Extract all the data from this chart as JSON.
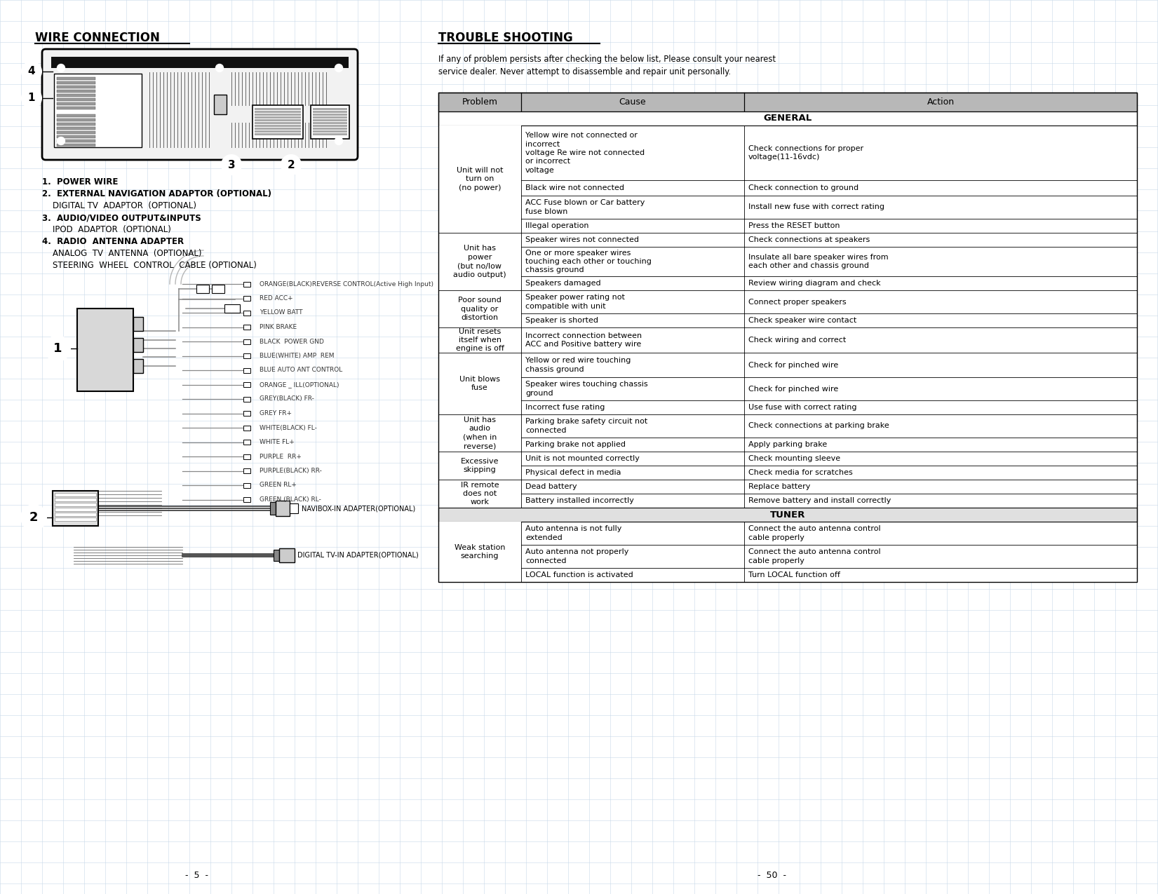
{
  "page_bg": "#ffffff",
  "grid_color": "#c8d8e8",
  "left_title": "WIRE CONNECTION",
  "right_title": "TROUBLE SHOOTING",
  "trouble_intro": "If any of problem persists after checking the below list, Please consult your nearest\nservice dealer. Never attempt to disassemble and repair unit personally.",
  "table_header": [
    "Problem",
    "Cause",
    "Action"
  ],
  "table_header_bg": "#b8b8b8",
  "general_bg": "#e8e8e8",
  "tuner_bg": "#e0e0e0",
  "wire_labels": [
    "ORANGE(BLACK)REVERSE CONTROL(Active High Input)",
    "RED ACC+",
    "YELLOW BATT",
    "PINK BRAKE",
    "BLACK  POWER GND",
    "BLUE(WHITE) AMP  REM",
    "BLUE AUTO ANT CONTROL",
    "ORANGE _ ILL(OPTIONAL)",
    "GREY(BLACK) FR-",
    "GREY FR+",
    "WHITE(BLACK) FL-",
    "WHITE FL+",
    "PURPLE  RR+",
    "PURPLE(BLACK) RR-",
    "GREEN RL+",
    "GREEN (BLACK) RL-"
  ],
  "table_rows": [
    {
      "problem": "Unit will not\nturn on\n(no power)",
      "cause": "Yellow wire not connected or\nincorrect\nvoltage Re wire not connected\nor incorrect\nvoltage",
      "action": "Check connections for proper\nvoltage(11-16vdc)",
      "group_size": 4
    },
    {
      "problem": "",
      "cause": "Black wire not connected",
      "action": "Check connection to ground",
      "group_size": 0
    },
    {
      "problem": "",
      "cause": "ACC Fuse blown or Car battery\nfuse blown",
      "action": "Install new fuse with correct rating",
      "group_size": 0
    },
    {
      "problem": "",
      "cause": "Illegal operation",
      "action": "Press the RESET button",
      "group_size": 0
    },
    {
      "problem": "Unit has\npower\n(but no/low\naudio output)",
      "cause": "Speaker wires not connected",
      "action": "Check connections at speakers",
      "group_size": 3
    },
    {
      "problem": "",
      "cause": "One or more speaker wires\ntouching each other or touching\nchassis ground",
      "action": "Insulate all bare speaker wires from\neach other and chassis ground",
      "group_size": 0
    },
    {
      "problem": "",
      "cause": "Speakers damaged",
      "action": "Review wiring diagram and check",
      "group_size": 0
    },
    {
      "problem": "Poor sound\nquality or\ndistortion",
      "cause": "Speaker power rating not\ncompatible with unit",
      "action": "Connect proper speakers",
      "group_size": 2
    },
    {
      "problem": "",
      "cause": "Speaker is shorted",
      "action": "Check speaker wire contact",
      "group_size": 0
    },
    {
      "problem": "Unit resets\nitself when\nengine is off",
      "cause": "Incorrect connection between\nACC and Positive battery wire",
      "action": "Check wiring and correct",
      "group_size": 1
    },
    {
      "problem": "Unit blows\nfuse",
      "cause": "Yellow or red wire touching\nchassis ground",
      "action": "Check for pinched wire",
      "group_size": 3
    },
    {
      "problem": "",
      "cause": "Speaker wires touching chassis\nground",
      "action": "Check for pinched wire",
      "group_size": 0
    },
    {
      "problem": "",
      "cause": "Incorrect fuse rating",
      "action": "Use fuse with correct rating",
      "group_size": 0
    },
    {
      "problem": "Unit has\naudio\n(when in\nreverse)",
      "cause": "Parking brake safety circuit not\nconnected",
      "action": "Check connections at parking brake",
      "group_size": 2
    },
    {
      "problem": "",
      "cause": "Parking brake not applied",
      "action": "Apply parking brake",
      "group_size": 0
    },
    {
      "problem": "Excessive\nskipping",
      "cause": "Unit is not mounted correctly",
      "action": "Check mounting sleeve",
      "group_size": 2
    },
    {
      "problem": "",
      "cause": "Physical defect in media",
      "action": "Check media for scratches",
      "group_size": 0
    },
    {
      "problem": "IR remote\ndoes not\nwork",
      "cause": "Dead battery",
      "action": "Replace battery",
      "group_size": 2
    },
    {
      "problem": "",
      "cause": "Battery installed incorrectly",
      "action": "Remove battery and install correctly",
      "group_size": 0
    },
    {
      "problem": "Weak station\nsearching",
      "cause": "Auto antenna is not fully\nextended",
      "action": "Connect the auto antenna control\ncable properly",
      "group_size": 3
    },
    {
      "problem": "",
      "cause": "Auto antenna not properly\nconnected",
      "action": "Connect the auto antenna control\ncable properly",
      "group_size": 0
    },
    {
      "problem": "",
      "cause": "LOCAL function is activated",
      "action": "Turn LOCAL function off",
      "group_size": 0
    }
  ],
  "page_numbers": [
    "-  5  -",
    "-  50  -"
  ]
}
